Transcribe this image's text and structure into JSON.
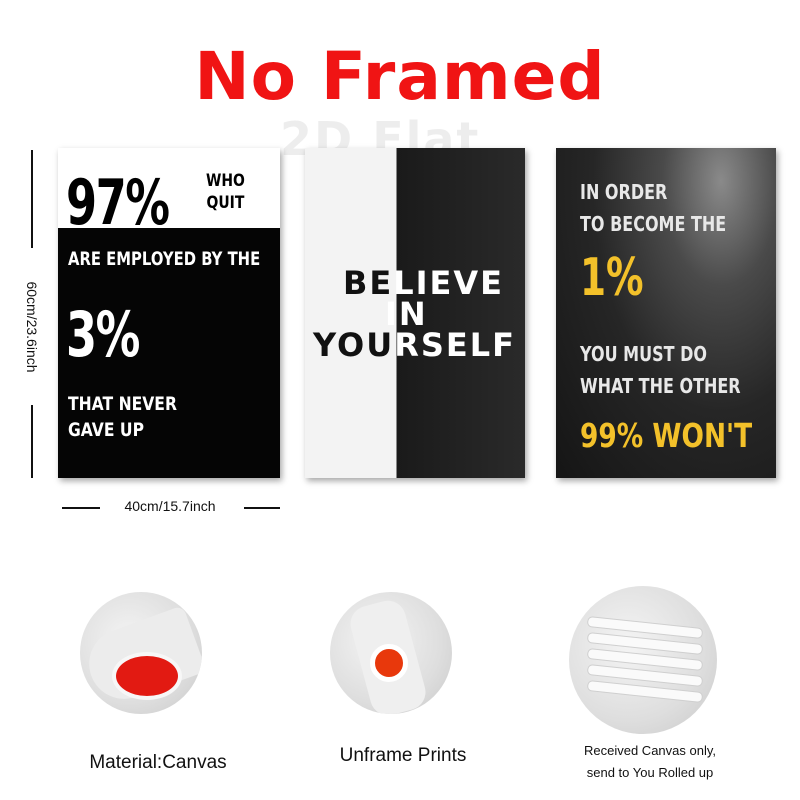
{
  "header": {
    "title": "No Framed",
    "title_color": "#f01414",
    "watermark": "2D Flat"
  },
  "posters": {
    "left": {
      "big_top": "97%",
      "who": "WHO",
      "quit": "QUIT",
      "employed": "ARE EMPLOYED BY THE",
      "big_mid": "3%",
      "never_1": "THAT NEVER",
      "never_2": "GAVE UP"
    },
    "middle": {
      "l1a": "BE",
      "l1b": "LIEVE",
      "l2": "IN",
      "l3a": "YOU",
      "l3b": "RSELF"
    },
    "right": {
      "l1": "IN ORDER",
      "l2": "TO BECOME THE",
      "big": "1%",
      "l3": "YOU MUST DO",
      "l4": "WHAT THE OTHER",
      "l5": "99% WON'T",
      "accent_color": "#f3c12a"
    }
  },
  "dimensions": {
    "height_label": "60cm/23.6inch",
    "width_label": "40cm/15.7inch"
  },
  "features": {
    "material": "Material:Canvas",
    "unframe": "Unframe  Prints",
    "received_1": "Received Canvas only,",
    "received_2": "send to You Rolled up"
  }
}
